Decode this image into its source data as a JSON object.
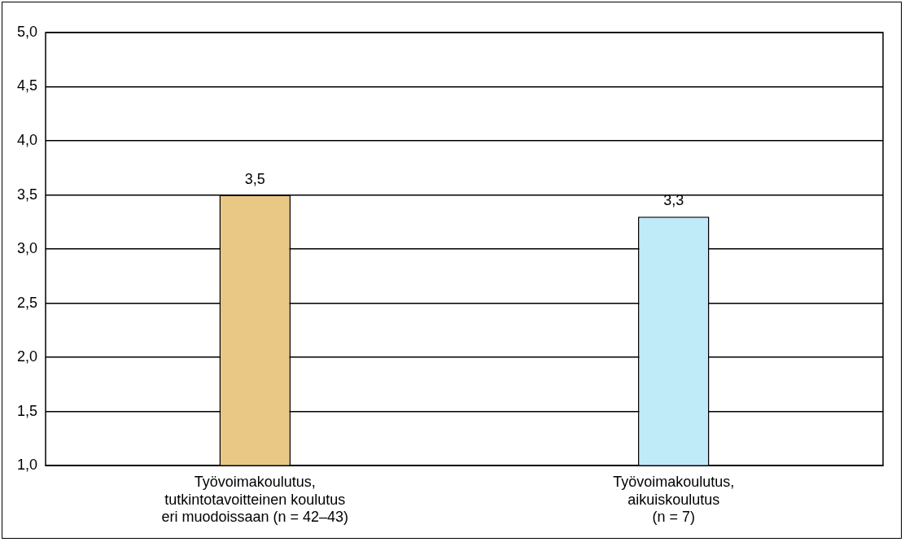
{
  "chart_data": {
    "type": "bar",
    "categories": [
      "Työvoimakoulutus,\ntutkintotavoitteinen koulutus\neri muodoissaan (n = 42–43)",
      "Työvoimakoulutus,\naikuiskoulutus\n(n = 7)"
    ],
    "values": [
      3.5,
      3.3
    ],
    "colors": [
      "#e9c785",
      "#bfeaf8"
    ],
    "value_labels": [
      "3,5",
      "3,3"
    ],
    "ylim": [
      1.0,
      5.0
    ],
    "yticks": [
      {
        "value": 1.0,
        "label": "1,0"
      },
      {
        "value": 1.5,
        "label": "1,5"
      },
      {
        "value": 2.0,
        "label": "2,0"
      },
      {
        "value": 2.5,
        "label": "2,5"
      },
      {
        "value": 3.0,
        "label": "3,0"
      },
      {
        "value": 3.5,
        "label": "3,5"
      },
      {
        "value": 4.0,
        "label": "4,0"
      },
      {
        "value": 4.5,
        "label": "4,5"
      },
      {
        "value": 5.0,
        "label": "5,0"
      }
    ],
    "grid": "y",
    "legend": false
  }
}
